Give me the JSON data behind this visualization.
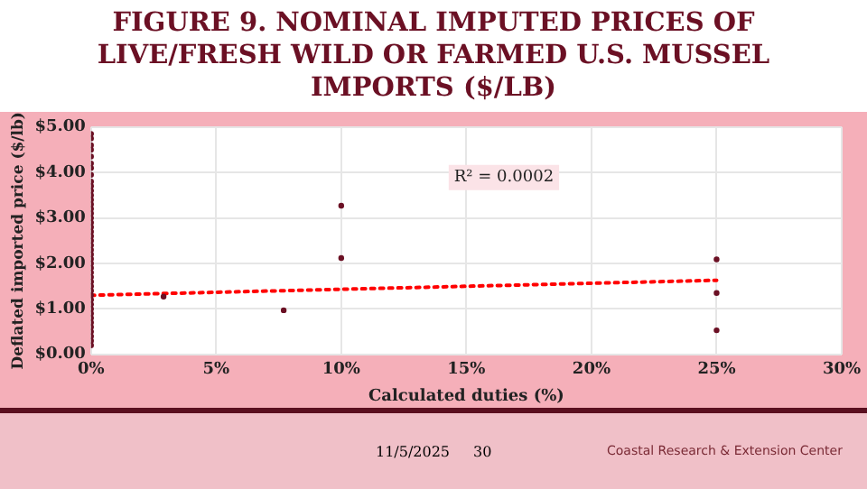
{
  "chart_data": {
    "type": "scatter",
    "title": "FIGURE 9. NOMINAL IMPUTED PRICES OF LIVE/FRESH WILD OR FARMED U.S. MUSSEL IMPORTS ($/LB)",
    "xlabel": "Calculated duties (%)",
    "ylabel": "Deflated imported price ($/lb)",
    "series": [
      {
        "color": "#6b1024",
        "marker": "circle",
        "x": [
          0,
          0,
          0,
          0,
          0,
          0,
          0,
          0,
          0,
          0,
          0,
          0,
          0,
          0,
          0,
          0,
          0,
          0,
          0,
          0,
          0,
          0,
          0,
          0,
          0,
          0,
          0,
          0,
          0,
          0,
          0,
          0,
          0,
          0,
          0,
          0,
          0,
          0,
          0,
          0,
          0,
          0,
          0,
          0,
          0,
          2.9,
          7.7,
          10,
          10,
          25,
          25,
          25
        ],
        "values": [
          0.2,
          0.3,
          0.4,
          0.5,
          0.6,
          0.7,
          0.8,
          0.9,
          1.0,
          1.1,
          1.2,
          1.3,
          1.4,
          1.5,
          1.6,
          1.7,
          1.8,
          1.9,
          2.0,
          2.1,
          2.2,
          2.3,
          2.4,
          2.5,
          2.6,
          2.7,
          2.8,
          2.9,
          3.0,
          3.1,
          3.2,
          3.3,
          3.4,
          3.5,
          3.6,
          3.7,
          3.8,
          3.95,
          4.1,
          4.2,
          4.35,
          4.5,
          4.6,
          4.75,
          4.85,
          1.27,
          0.97,
          3.27,
          2.12,
          2.09,
          1.35,
          0.53
        ]
      },
      {
        "type": "line",
        "color": "#ff0000",
        "marker": "none",
        "line_style": "dotted",
        "x": [
          0,
          25
        ],
        "values": [
          1.3,
          1.63
        ]
      }
    ],
    "xlim": [
      0,
      30
    ],
    "xticks": [
      {
        "value": 0,
        "label": "0%"
      },
      {
        "value": 5,
        "label": "5%"
      },
      {
        "value": 10,
        "label": "10%"
      },
      {
        "value": 15,
        "label": "15%"
      },
      {
        "value": 20,
        "label": "20%"
      },
      {
        "value": 25,
        "label": "25%"
      },
      {
        "value": 30,
        "label": "30%"
      }
    ],
    "ylim": [
      0,
      5
    ],
    "yticks": [
      {
        "value": 0,
        "label": "$0.00"
      },
      {
        "value": 1,
        "label": "$1.00"
      },
      {
        "value": 2,
        "label": "$2.00"
      },
      {
        "value": 3,
        "label": "$3.00"
      },
      {
        "value": 4,
        "label": "$4.00"
      },
      {
        "value": 5,
        "label": "$5.00"
      }
    ],
    "grid": true,
    "legend": false,
    "annotations": [
      "R² = 0.0002",
      "11/5/2025",
      "30",
      "Coastal Research & Extension Center"
    ]
  }
}
